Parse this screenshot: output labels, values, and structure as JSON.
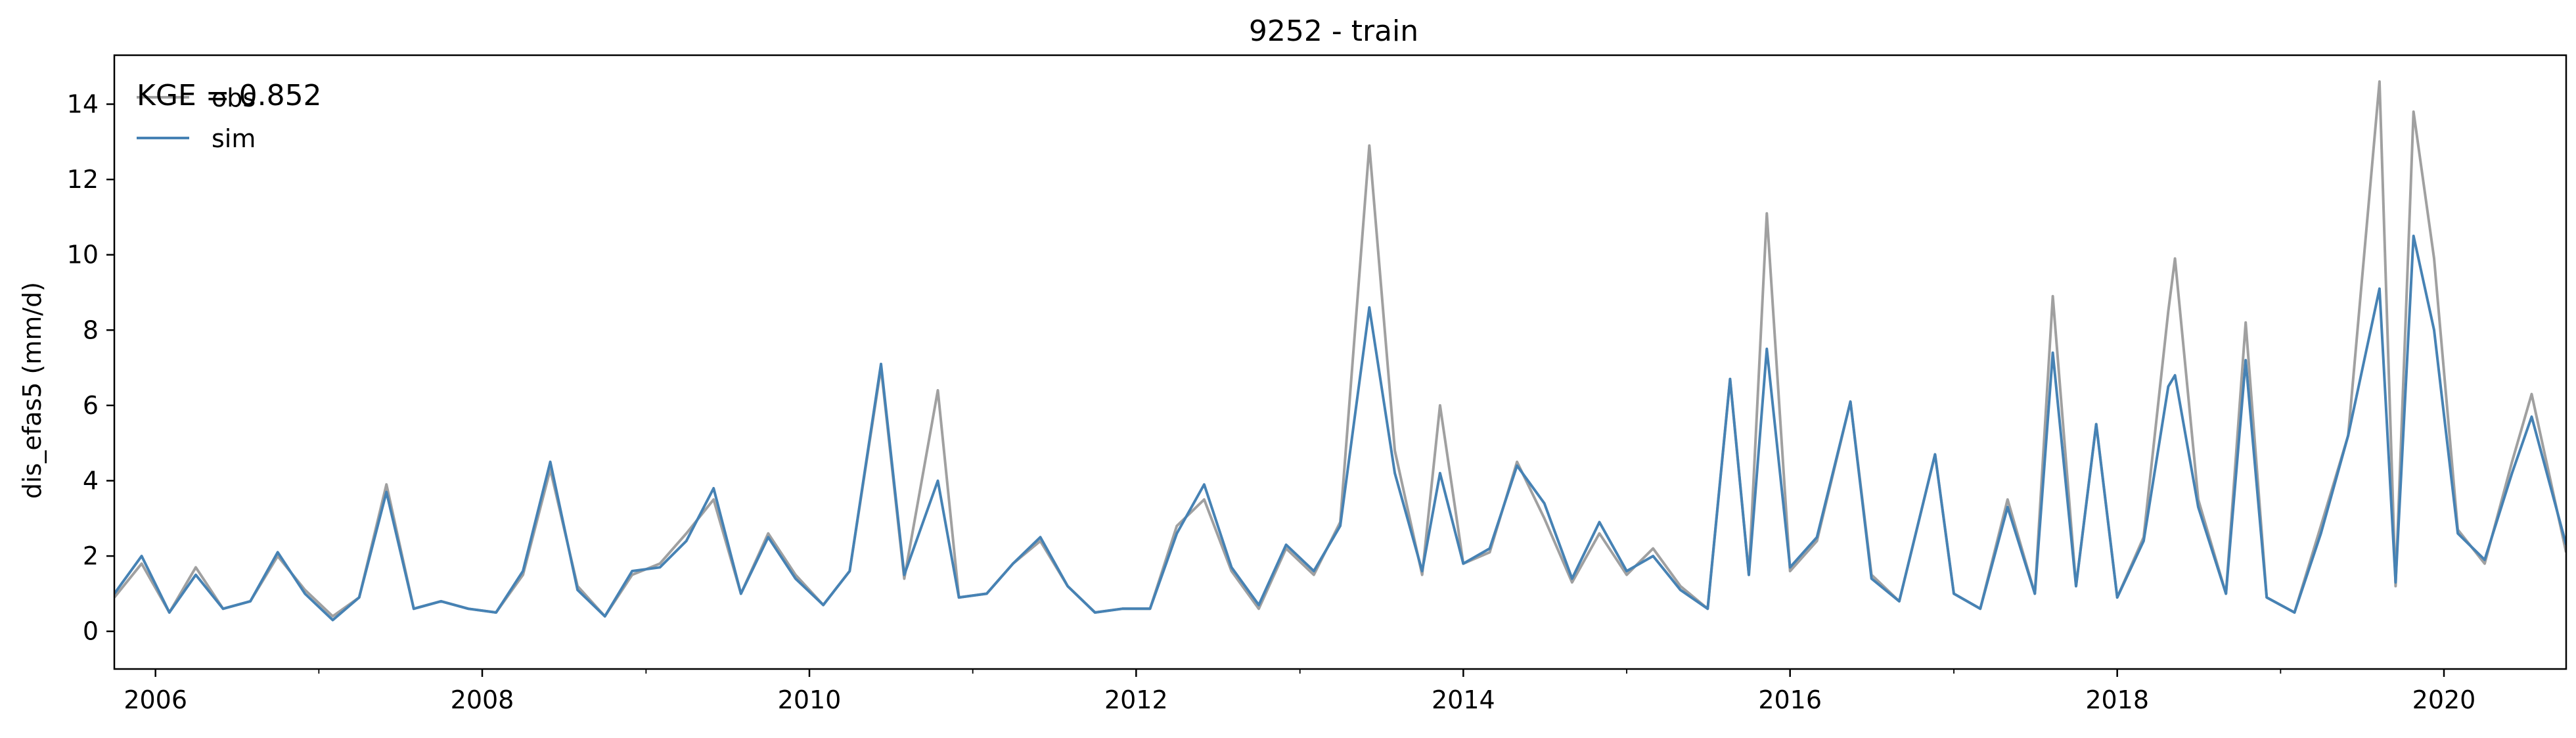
{
  "chart_data": {
    "type": "line",
    "title": "9252 - train",
    "xlabel": "",
    "ylabel": "dis_efas5 (mm/d)",
    "xlim": [
      "2005-10-01",
      "2020-09-30"
    ],
    "ylim": [
      -1.0,
      15.3
    ],
    "x_ticks": [
      {
        "date": "2006-01-01",
        "label": "2006"
      },
      {
        "date": "2008-01-01",
        "label": "2008"
      },
      {
        "date": "2010-01-01",
        "label": "2010"
      },
      {
        "date": "2012-01-01",
        "label": "2012"
      },
      {
        "date": "2014-01-01",
        "label": "2014"
      },
      {
        "date": "2016-01-01",
        "label": "2016"
      },
      {
        "date": "2018-01-01",
        "label": "2018"
      },
      {
        "date": "2020-01-01",
        "label": "2020"
      }
    ],
    "x_minor_ticks": [
      "2007-01-01",
      "2009-01-01",
      "2011-01-01",
      "2013-01-01",
      "2015-01-01",
      "2017-01-01",
      "2019-01-01"
    ],
    "y_ticks": [
      {
        "value": 0,
        "label": "0"
      },
      {
        "value": 2,
        "label": "2"
      },
      {
        "value": 4,
        "label": "4"
      },
      {
        "value": 6,
        "label": "6"
      },
      {
        "value": 8,
        "label": "8"
      },
      {
        "value": 10,
        "label": "10"
      },
      {
        "value": 12,
        "label": "12"
      },
      {
        "value": 14,
        "label": "14"
      }
    ],
    "grid": false,
    "legend": {
      "placement": "top-left",
      "annotation": "KGE = 0.852",
      "entries": [
        {
          "name": "obs",
          "color": "#a0a0a0"
        },
        {
          "name": "sim",
          "color": "#4682b4"
        }
      ]
    },
    "series": [
      {
        "name": "obs",
        "color": "#a0a0a0",
        "points": [
          [
            "2005-10-01",
            0.9
          ],
          [
            "2005-12-01",
            1.8
          ],
          [
            "2006-02-01",
            0.5
          ],
          [
            "2006-04-01",
            1.7
          ],
          [
            "2006-06-01",
            0.6
          ],
          [
            "2006-08-01",
            0.8
          ],
          [
            "2006-10-01",
            2.0
          ],
          [
            "2006-12-01",
            1.1
          ],
          [
            "2007-02-01",
            0.4
          ],
          [
            "2007-04-01",
            0.9
          ],
          [
            "2007-06-01",
            3.9
          ],
          [
            "2007-08-01",
            0.6
          ],
          [
            "2007-10-01",
            0.8
          ],
          [
            "2007-12-01",
            0.6
          ],
          [
            "2008-02-01",
            0.5
          ],
          [
            "2008-04-01",
            1.5
          ],
          [
            "2008-06-01",
            4.3
          ],
          [
            "2008-08-01",
            1.2
          ],
          [
            "2008-10-01",
            0.4
          ],
          [
            "2008-12-01",
            1.5
          ],
          [
            "2009-02-01",
            1.8
          ],
          [
            "2009-04-01",
            2.6
          ],
          [
            "2009-06-01",
            3.5
          ],
          [
            "2009-08-01",
            1.0
          ],
          [
            "2009-10-01",
            2.6
          ],
          [
            "2009-12-01",
            1.5
          ],
          [
            "2010-02-01",
            0.7
          ],
          [
            "2010-04-01",
            1.6
          ],
          [
            "2010-06-10",
            7.0
          ],
          [
            "2010-08-01",
            1.4
          ],
          [
            "2010-10-15",
            6.4
          ],
          [
            "2010-12-01",
            0.9
          ],
          [
            "2011-02-01",
            1.0
          ],
          [
            "2011-04-01",
            1.8
          ],
          [
            "2011-06-01",
            2.4
          ],
          [
            "2011-08-01",
            1.2
          ],
          [
            "2011-10-01",
            0.5
          ],
          [
            "2011-12-01",
            0.6
          ],
          [
            "2012-02-01",
            0.6
          ],
          [
            "2012-04-01",
            2.8
          ],
          [
            "2012-06-01",
            3.5
          ],
          [
            "2012-08-01",
            1.6
          ],
          [
            "2012-10-01",
            0.6
          ],
          [
            "2012-12-01",
            2.2
          ],
          [
            "2013-02-01",
            1.5
          ],
          [
            "2013-04-01",
            2.9
          ],
          [
            "2013-06-05",
            12.9
          ],
          [
            "2013-08-01",
            4.8
          ],
          [
            "2013-10-01",
            1.5
          ],
          [
            "2013-11-10",
            6.0
          ],
          [
            "2014-01-01",
            1.8
          ],
          [
            "2014-03-01",
            2.1
          ],
          [
            "2014-05-01",
            4.5
          ],
          [
            "2014-07-01",
            3.0
          ],
          [
            "2014-09-01",
            1.3
          ],
          [
            "2014-11-01",
            2.6
          ],
          [
            "2015-01-01",
            1.5
          ],
          [
            "2015-03-01",
            2.2
          ],
          [
            "2015-05-01",
            1.2
          ],
          [
            "2015-07-01",
            0.6
          ],
          [
            "2015-08-20",
            6.7
          ],
          [
            "2015-10-01",
            1.5
          ],
          [
            "2015-11-10",
            11.1
          ],
          [
            "2016-01-01",
            1.6
          ],
          [
            "2016-03-01",
            2.4
          ],
          [
            "2016-05-15",
            6.1
          ],
          [
            "2016-07-01",
            1.5
          ],
          [
            "2016-09-01",
            0.8
          ],
          [
            "2016-11-20",
            4.7
          ],
          [
            "2017-01-01",
            1.0
          ],
          [
            "2017-03-01",
            0.6
          ],
          [
            "2017-05-01",
            3.5
          ],
          [
            "2017-07-01",
            1.0
          ],
          [
            "2017-08-10",
            8.9
          ],
          [
            "2017-10-01",
            1.2
          ],
          [
            "2017-11-15",
            5.5
          ],
          [
            "2018-01-01",
            0.9
          ],
          [
            "2018-03-01",
            2.5
          ],
          [
            "2018-04-25",
            8.5
          ],
          [
            "2018-05-10",
            9.9
          ],
          [
            "2018-07-01",
            3.5
          ],
          [
            "2018-09-01",
            1.0
          ],
          [
            "2018-10-15",
            8.2
          ],
          [
            "2018-12-01",
            0.9
          ],
          [
            "2019-02-01",
            0.5
          ],
          [
            "2019-04-01",
            2.8
          ],
          [
            "2019-06-01",
            5.2
          ],
          [
            "2019-08-10",
            14.6
          ],
          [
            "2019-09-15",
            1.2
          ],
          [
            "2019-10-25",
            13.8
          ],
          [
            "2019-12-10",
            9.9
          ],
          [
            "2020-02-01",
            2.7
          ],
          [
            "2020-04-01",
            1.8
          ],
          [
            "2020-06-01",
            4.5
          ],
          [
            "2020-07-15",
            6.3
          ],
          [
            "2020-09-30",
            2.1
          ]
        ]
      },
      {
        "name": "sim",
        "color": "#4682b4",
        "points": [
          [
            "2005-10-01",
            1.0
          ],
          [
            "2005-12-01",
            2.0
          ],
          [
            "2006-02-01",
            0.5
          ],
          [
            "2006-04-01",
            1.5
          ],
          [
            "2006-06-01",
            0.6
          ],
          [
            "2006-08-01",
            0.8
          ],
          [
            "2006-10-01",
            2.1
          ],
          [
            "2006-12-01",
            1.0
          ],
          [
            "2007-02-01",
            0.3
          ],
          [
            "2007-04-01",
            0.9
          ],
          [
            "2007-06-01",
            3.7
          ],
          [
            "2007-08-01",
            0.6
          ],
          [
            "2007-10-01",
            0.8
          ],
          [
            "2007-12-01",
            0.6
          ],
          [
            "2008-02-01",
            0.5
          ],
          [
            "2008-04-01",
            1.6
          ],
          [
            "2008-06-01",
            4.5
          ],
          [
            "2008-08-01",
            1.1
          ],
          [
            "2008-10-01",
            0.4
          ],
          [
            "2008-12-01",
            1.6
          ],
          [
            "2009-02-01",
            1.7
          ],
          [
            "2009-04-01",
            2.4
          ],
          [
            "2009-06-01",
            3.8
          ],
          [
            "2009-08-01",
            1.0
          ],
          [
            "2009-10-01",
            2.5
          ],
          [
            "2009-12-01",
            1.4
          ],
          [
            "2010-02-01",
            0.7
          ],
          [
            "2010-04-01",
            1.6
          ],
          [
            "2010-06-10",
            7.1
          ],
          [
            "2010-08-01",
            1.5
          ],
          [
            "2010-10-15",
            4.0
          ],
          [
            "2010-12-01",
            0.9
          ],
          [
            "2011-02-01",
            1.0
          ],
          [
            "2011-04-01",
            1.8
          ],
          [
            "2011-06-01",
            2.5
          ],
          [
            "2011-08-01",
            1.2
          ],
          [
            "2011-10-01",
            0.5
          ],
          [
            "2011-12-01",
            0.6
          ],
          [
            "2012-02-01",
            0.6
          ],
          [
            "2012-04-01",
            2.6
          ],
          [
            "2012-06-01",
            3.9
          ],
          [
            "2012-08-01",
            1.7
          ],
          [
            "2012-10-01",
            0.7
          ],
          [
            "2012-12-01",
            2.3
          ],
          [
            "2013-02-01",
            1.6
          ],
          [
            "2013-04-01",
            2.8
          ],
          [
            "2013-06-05",
            8.6
          ],
          [
            "2013-08-01",
            4.2
          ],
          [
            "2013-10-01",
            1.6
          ],
          [
            "2013-11-10",
            4.2
          ],
          [
            "2014-01-01",
            1.8
          ],
          [
            "2014-03-01",
            2.2
          ],
          [
            "2014-05-01",
            4.4
          ],
          [
            "2014-07-01",
            3.4
          ],
          [
            "2014-09-01",
            1.4
          ],
          [
            "2014-11-01",
            2.9
          ],
          [
            "2015-01-01",
            1.6
          ],
          [
            "2015-03-01",
            2.0
          ],
          [
            "2015-05-01",
            1.1
          ],
          [
            "2015-07-01",
            0.6
          ],
          [
            "2015-08-20",
            6.7
          ],
          [
            "2015-10-01",
            1.5
          ],
          [
            "2015-11-10",
            7.5
          ],
          [
            "2016-01-01",
            1.7
          ],
          [
            "2016-03-01",
            2.5
          ],
          [
            "2016-05-15",
            6.1
          ],
          [
            "2016-07-01",
            1.4
          ],
          [
            "2016-09-01",
            0.8
          ],
          [
            "2016-11-20",
            4.7
          ],
          [
            "2017-01-01",
            1.0
          ],
          [
            "2017-03-01",
            0.6
          ],
          [
            "2017-05-01",
            3.3
          ],
          [
            "2017-07-01",
            1.0
          ],
          [
            "2017-08-10",
            7.4
          ],
          [
            "2017-10-01",
            1.2
          ],
          [
            "2017-11-15",
            5.5
          ],
          [
            "2018-01-01",
            0.9
          ],
          [
            "2018-03-01",
            2.4
          ],
          [
            "2018-04-25",
            6.5
          ],
          [
            "2018-05-10",
            6.8
          ],
          [
            "2018-07-01",
            3.3
          ],
          [
            "2018-09-01",
            1.0
          ],
          [
            "2018-10-15",
            7.2
          ],
          [
            "2018-12-01",
            0.9
          ],
          [
            "2019-02-01",
            0.5
          ],
          [
            "2019-04-01",
            2.6
          ],
          [
            "2019-06-01",
            5.2
          ],
          [
            "2019-08-10",
            9.1
          ],
          [
            "2019-09-15",
            1.3
          ],
          [
            "2019-10-25",
            10.5
          ],
          [
            "2019-12-10",
            8.0
          ],
          [
            "2020-02-01",
            2.6
          ],
          [
            "2020-04-01",
            1.9
          ],
          [
            "2020-06-01",
            4.2
          ],
          [
            "2020-07-15",
            5.7
          ],
          [
            "2020-09-30",
            2.3
          ]
        ]
      }
    ]
  }
}
